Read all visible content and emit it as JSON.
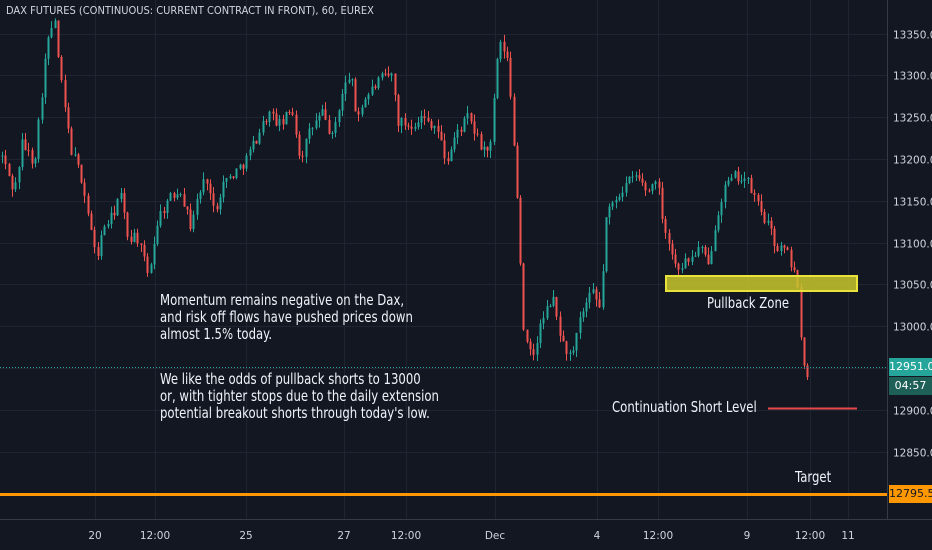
{
  "title": "DAX FUTURES (CONTINUOUS: CURRENT CONTRACT IN FRONT), 60, EUREX",
  "colors": {
    "background": "#131722",
    "up": "#26a69a",
    "down": "#ef5350",
    "grid": "#1f2433",
    "text": "#d1d4dc",
    "current_price_line": "#26a69a",
    "target_line": "#ff9800",
    "zone_fill": "#c9c52c",
    "short_line": "#e84a4a"
  },
  "annotations": {
    "commentary_p1": [
      "Momentum remains negative on the Dax,",
      "and risk off flows have pushed prices down",
      "almost 1.5% today."
    ],
    "commentary_p2": [
      "We like the odds of pullback shorts to 13000",
      "or, with tighter stops due to the daily extension",
      "potential breakout shorts through today's low."
    ],
    "pullback_zone": "Pullback Zone",
    "continuation_short": "Continuation Short Level",
    "target": "Target"
  },
  "price_badges": {
    "current_price": "12951.0",
    "countdown": "04:57",
    "target_price": "12795.5"
  },
  "chart_data": {
    "type": "candlestick",
    "interval": "60",
    "exchange": "EUREX",
    "y_ticks": [
      12850,
      12900,
      12950,
      13000,
      13050,
      13100,
      13150,
      13200,
      13250,
      13300,
      13350
    ],
    "y_tick_labels": [
      "12850.0",
      "12900.0",
      "13000.0",
      "13050.0",
      "13100.0",
      "13150.0",
      "13200.0",
      "13250.0",
      "13300.0",
      "13350.0"
    ],
    "ylim": [
      12765,
      13375
    ],
    "x_tick_labels": [
      "20",
      "12:00",
      "25",
      "27",
      "12:00",
      "Dec",
      "4",
      "12:00",
      "9",
      "12:00",
      "11"
    ],
    "bar_count": 250,
    "anchor_closes": [
      [
        0,
        13205
      ],
      [
        8,
        13150
      ],
      [
        14,
        13218
      ],
      [
        22,
        13200
      ],
      [
        30,
        13310
      ],
      [
        37,
        13340
      ],
      [
        44,
        13210
      ],
      [
        52,
        13160
      ],
      [
        58,
        13085
      ],
      [
        66,
        13120
      ],
      [
        74,
        13090
      ],
      [
        82,
        13140
      ],
      [
        90,
        13070
      ],
      [
        98,
        13130
      ],
      [
        106,
        13150
      ],
      [
        114,
        13105
      ],
      [
        122,
        13170
      ],
      [
        130,
        13155
      ],
      [
        138,
        13195
      ],
      [
        146,
        13180
      ],
      [
        154,
        13240
      ],
      [
        162,
        13215
      ],
      [
        170,
        13260
      ],
      [
        178,
        13230
      ],
      [
        186,
        13255
      ],
      [
        194,
        13210
      ],
      [
        202,
        13220
      ],
      [
        210,
        13270
      ],
      [
        220,
        13260
      ],
      [
        226,
        13300
      ],
      [
        232,
        13290
      ],
      [
        238,
        13310
      ],
      [
        246,
        13295
      ]
    ],
    "segments": [
      {
        "from": "start",
        "to": "Nov 28",
        "range": [
          13050,
          13370
        ]
      },
      {
        "from": "Nov 30",
        "to": "Dec 3",
        "range": [
          12950,
          13340
        ]
      },
      {
        "from": "Dec 3",
        "to": "Dec 10",
        "range": [
          12960,
          13185
        ]
      },
      {
        "from": "Dec 10",
        "to": "last",
        "range": [
          12895,
          13100
        ]
      }
    ],
    "levels": {
      "pullback_zone": [
        13042,
        13058
      ],
      "continuation_short": 12900,
      "current_price": 12951.0,
      "target": 12795.5
    }
  }
}
